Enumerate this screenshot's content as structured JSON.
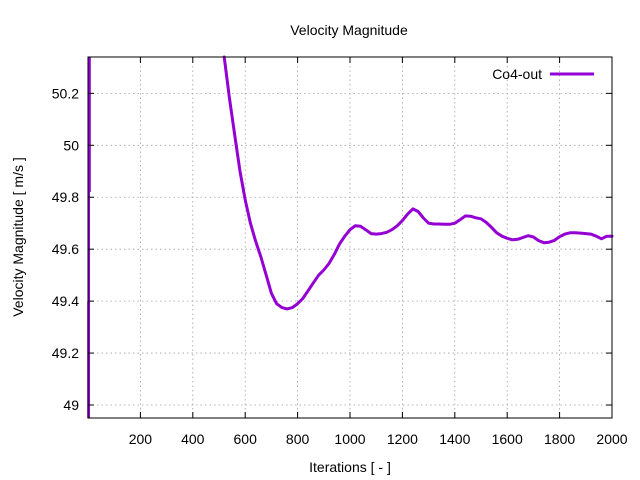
{
  "chart_data": {
    "type": "line",
    "title": "Velocity Magnitude",
    "xlabel": "Iterations [ - ]",
    "ylabel": "Velocity Magnitude [ m/s ]",
    "xlim": [
      0,
      2000
    ],
    "ylim": [
      48.95,
      50.34
    ],
    "xticks": [
      200,
      400,
      600,
      800,
      1000,
      1200,
      1400,
      1600,
      1800,
      2000
    ],
    "yticks": [
      49,
      49.2,
      49.4,
      49.6,
      49.8,
      50,
      50.2
    ],
    "grid": true,
    "legend_position": "top-right",
    "series": [
      {
        "name": "Co4-out",
        "color": "#9400d3",
        "x": [
          520,
          540,
          560,
          580,
          600,
          620,
          640,
          660,
          680,
          700,
          720,
          740,
          760,
          780,
          800,
          820,
          840,
          860,
          880,
          900,
          920,
          940,
          960,
          980,
          1000,
          1020,
          1040,
          1060,
          1080,
          1100,
          1120,
          1140,
          1160,
          1180,
          1200,
          1220,
          1240,
          1260,
          1280,
          1300,
          1320,
          1340,
          1360,
          1380,
          1400,
          1420,
          1440,
          1460,
          1480,
          1500,
          1520,
          1540,
          1560,
          1580,
          1600,
          1620,
          1640,
          1660,
          1680,
          1700,
          1720,
          1740,
          1760,
          1780,
          1800,
          1820,
          1840,
          1860,
          1880,
          1900,
          1920,
          1940,
          1960,
          1980,
          2000
        ],
        "y": [
          50.34,
          50.18,
          50.04,
          49.9,
          49.79,
          49.7,
          49.63,
          49.57,
          49.5,
          49.43,
          49.39,
          49.375,
          49.37,
          49.375,
          49.39,
          49.41,
          49.44,
          49.47,
          49.5,
          49.52,
          49.545,
          49.58,
          49.62,
          49.65,
          49.675,
          49.69,
          49.688,
          49.675,
          49.66,
          49.658,
          49.66,
          49.665,
          49.675,
          49.69,
          49.71,
          49.735,
          49.755,
          49.745,
          49.72,
          49.7,
          49.697,
          49.697,
          49.696,
          49.696,
          49.7,
          49.713,
          49.728,
          49.727,
          49.721,
          49.717,
          49.703,
          49.684,
          49.663,
          49.65,
          49.642,
          49.636,
          49.638,
          49.645,
          49.652,
          49.647,
          49.633,
          49.625,
          49.627,
          49.634,
          49.648,
          49.658,
          49.663,
          49.663,
          49.662,
          49.66,
          49.658,
          49.65,
          49.64,
          49.65,
          49.65
        ]
      }
    ]
  }
}
